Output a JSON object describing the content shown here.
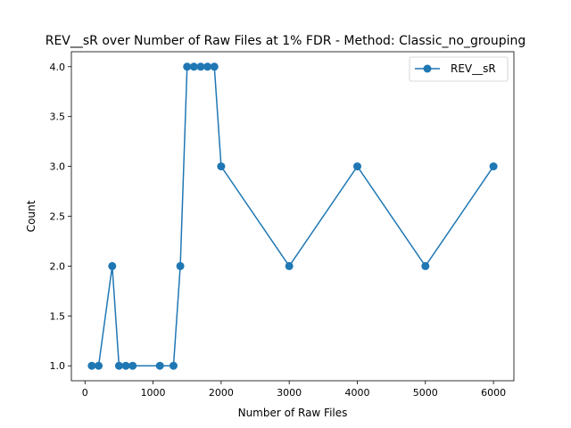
{
  "chart_data": {
    "type": "line",
    "title": "REV__sR over Number of Raw Files at 1% FDR - Method: Classic_no_grouping",
    "xlabel": "Number of Raw Files",
    "ylabel": "Count",
    "xlim": [
      -200,
      6300
    ],
    "ylim": [
      0.85,
      4.15
    ],
    "xticks": [
      0,
      1000,
      2000,
      3000,
      4000,
      5000,
      6000
    ],
    "xtick_labels": [
      "0",
      "1000",
      "2000",
      "3000",
      "4000",
      "5000",
      "6000"
    ],
    "yticks": [
      1.0,
      1.5,
      2.0,
      2.5,
      3.0,
      3.5,
      4.0
    ],
    "ytick_labels": [
      "1.0",
      "1.5",
      "2.0",
      "2.5",
      "3.0",
      "3.5",
      "4.0"
    ],
    "grid": false,
    "legend_position": "upper right",
    "series": [
      {
        "name": "REV__sR",
        "color": "#1f77b4",
        "marker": "circle",
        "x": [
          100,
          200,
          400,
          500,
          600,
          700,
          1100,
          1300,
          1400,
          1500,
          1600,
          1700,
          1800,
          1900,
          2000,
          3000,
          4000,
          5000,
          6000
        ],
        "y": [
          1,
          1,
          2,
          1,
          1,
          1,
          1,
          1,
          2,
          4,
          4,
          4,
          4,
          4,
          3,
          2,
          3,
          2,
          3
        ]
      }
    ]
  }
}
